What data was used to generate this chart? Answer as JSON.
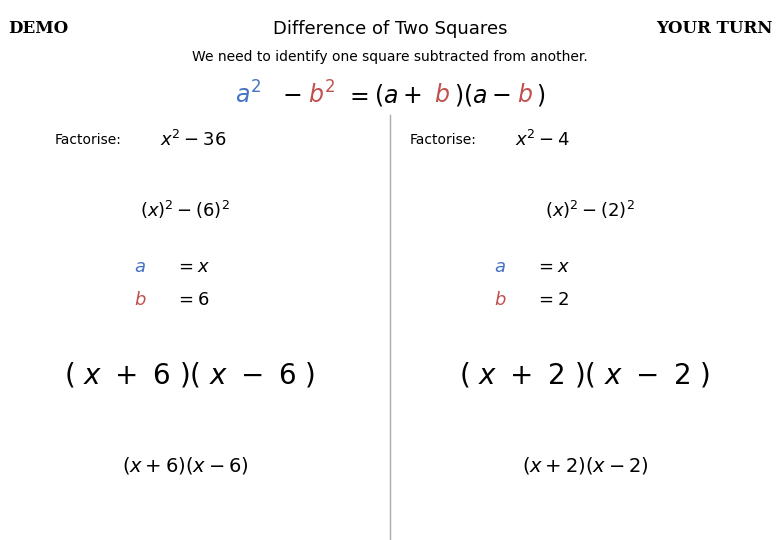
{
  "title": "Difference of Two Squares",
  "demo_label": "DEMO",
  "your_turn_label": "YOUR TURN",
  "subtitle": "We need to identify one square subtracted from another.",
  "blue_color": "#4472C4",
  "red_color": "#C0504D",
  "black_color": "#000000",
  "bg_color": "#FFFFFF",
  "divider_color": "#AAAAAA",
  "title_fontsize": 13,
  "demo_fontsize": 12,
  "subtitle_fontsize": 10,
  "formula_fontsize": 17,
  "factorise_label_fontsize": 10,
  "factorise_expr_fontsize": 13,
  "step1_fontsize": 13,
  "ab_label_fontsize": 13,
  "big_fontsize": 20,
  "final_fontsize": 14
}
